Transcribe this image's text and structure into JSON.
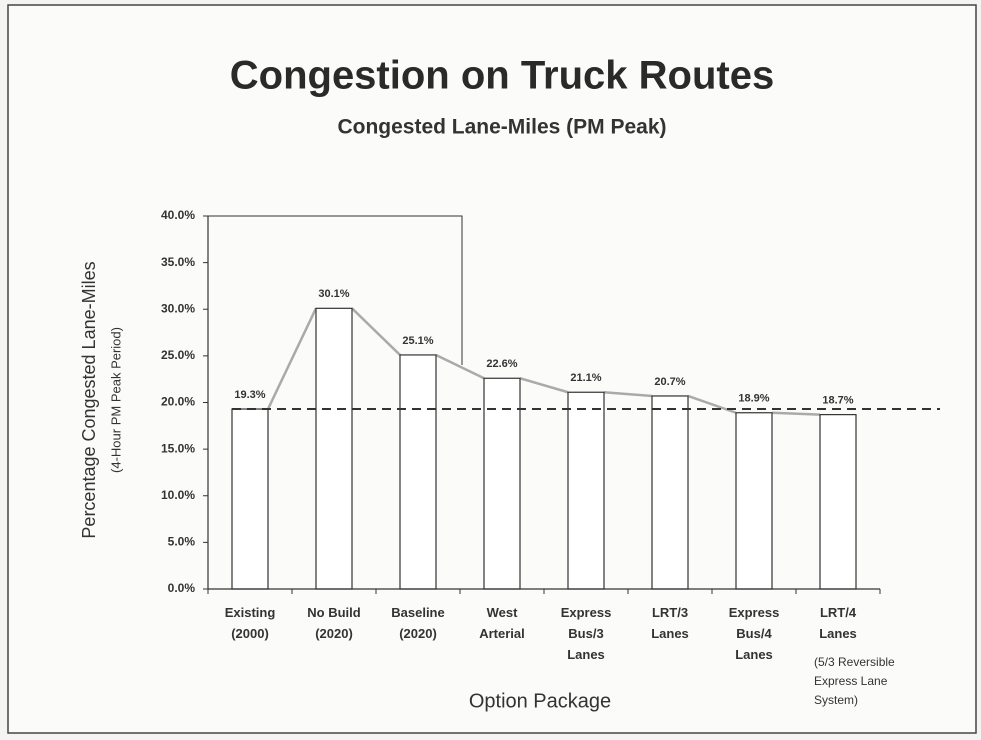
{
  "chart_data": {
    "type": "bar",
    "title": "Congestion on Truck Routes",
    "subtitle": "Congested Lane-Miles (PM Peak)",
    "y_label": "Percentage Congested Lane-Miles",
    "y_sublabel": "(4-Hour PM Peak Period)",
    "x_label": "Option Package",
    "categories": [
      "Existing\n(2000)",
      "No Build\n(2020)",
      "Baseline\n(2020)",
      "West\nArterial",
      "Express\nBus/3\nLanes",
      "LRT/3\nLanes",
      "Express\nBus/4\nLanes",
      "LRT/4\nLanes"
    ],
    "category_note": "(5/3 Reversible\nExpress Lane\nSystem)",
    "values": [
      19.3,
      30.1,
      25.1,
      22.6,
      21.1,
      20.7,
      18.9,
      18.7
    ],
    "value_labels": [
      "19.3%",
      "30.1%",
      "25.1%",
      "22.6%",
      "21.1%",
      "20.7%",
      "18.9%",
      "18.7%"
    ],
    "color": "#ffffff",
    "ylim": [
      0,
      40
    ],
    "yticks": [
      {
        "value": 0,
        "label": "0.0%"
      },
      {
        "value": 5,
        "label": "5.0%"
      },
      {
        "value": 10,
        "label": "10.0%"
      },
      {
        "value": 15,
        "label": "15.0%"
      },
      {
        "value": 20,
        "label": "20.0%"
      },
      {
        "value": 25,
        "label": "25.0%"
      },
      {
        "value": 30,
        "label": "30.0%"
      },
      {
        "value": 35,
        "label": "35.0%"
      },
      {
        "value": 40,
        "label": "40.0%"
      }
    ],
    "grid": false
  }
}
